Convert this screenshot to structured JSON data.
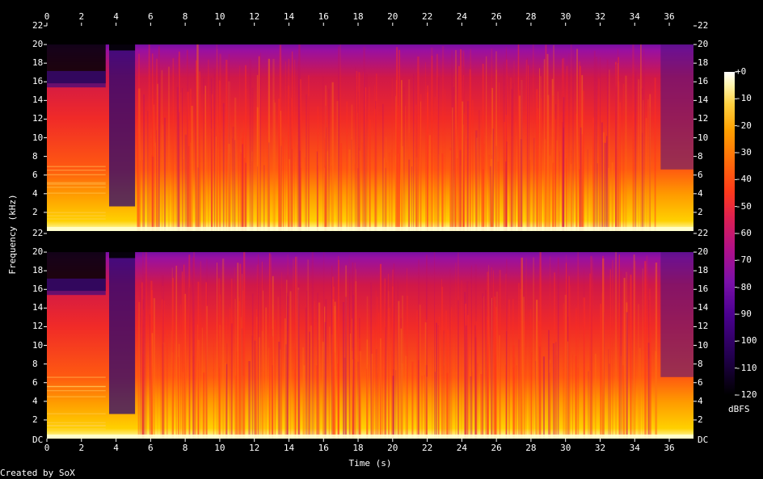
{
  "chart_data": {
    "type": "heatmap",
    "title": "",
    "xlabel": "Time (s)",
    "ylabel": "Frequency (kHz)",
    "colorbar_label": "dBFS",
    "credit": "Created by SoX",
    "x_ticks": [
      "0",
      "2",
      "4",
      "6",
      "8",
      "10",
      "12",
      "14",
      "16",
      "18",
      "20",
      "22",
      "24",
      "26",
      "28",
      "30",
      "32",
      "34",
      "36"
    ],
    "y_ticks": [
      "2",
      "4",
      "6",
      "8",
      "10",
      "12",
      "14",
      "16",
      "18",
      "20",
      "22"
    ],
    "y_bottom_label": "DC",
    "colorbar_ticks": [
      "+0",
      "-10",
      "-20",
      "-30",
      "-40",
      "-50",
      "-60",
      "-70",
      "-80",
      "-90",
      "-100",
      "-110",
      "-120"
    ],
    "xlim": [
      0,
      37.4
    ],
    "ylim_khz": [
      0,
      22
    ],
    "zlim_dbfs": [
      -120,
      0
    ],
    "channels": 2,
    "colormap": [
      "#000000",
      "#22004e",
      "#4b0090",
      "#7a10a8",
      "#b0108a",
      "#dd2050",
      "#ff3a1a",
      "#ff6a0a",
      "#ffa000",
      "#ffd040",
      "#fff5b0",
      "#ffffff"
    ]
  }
}
